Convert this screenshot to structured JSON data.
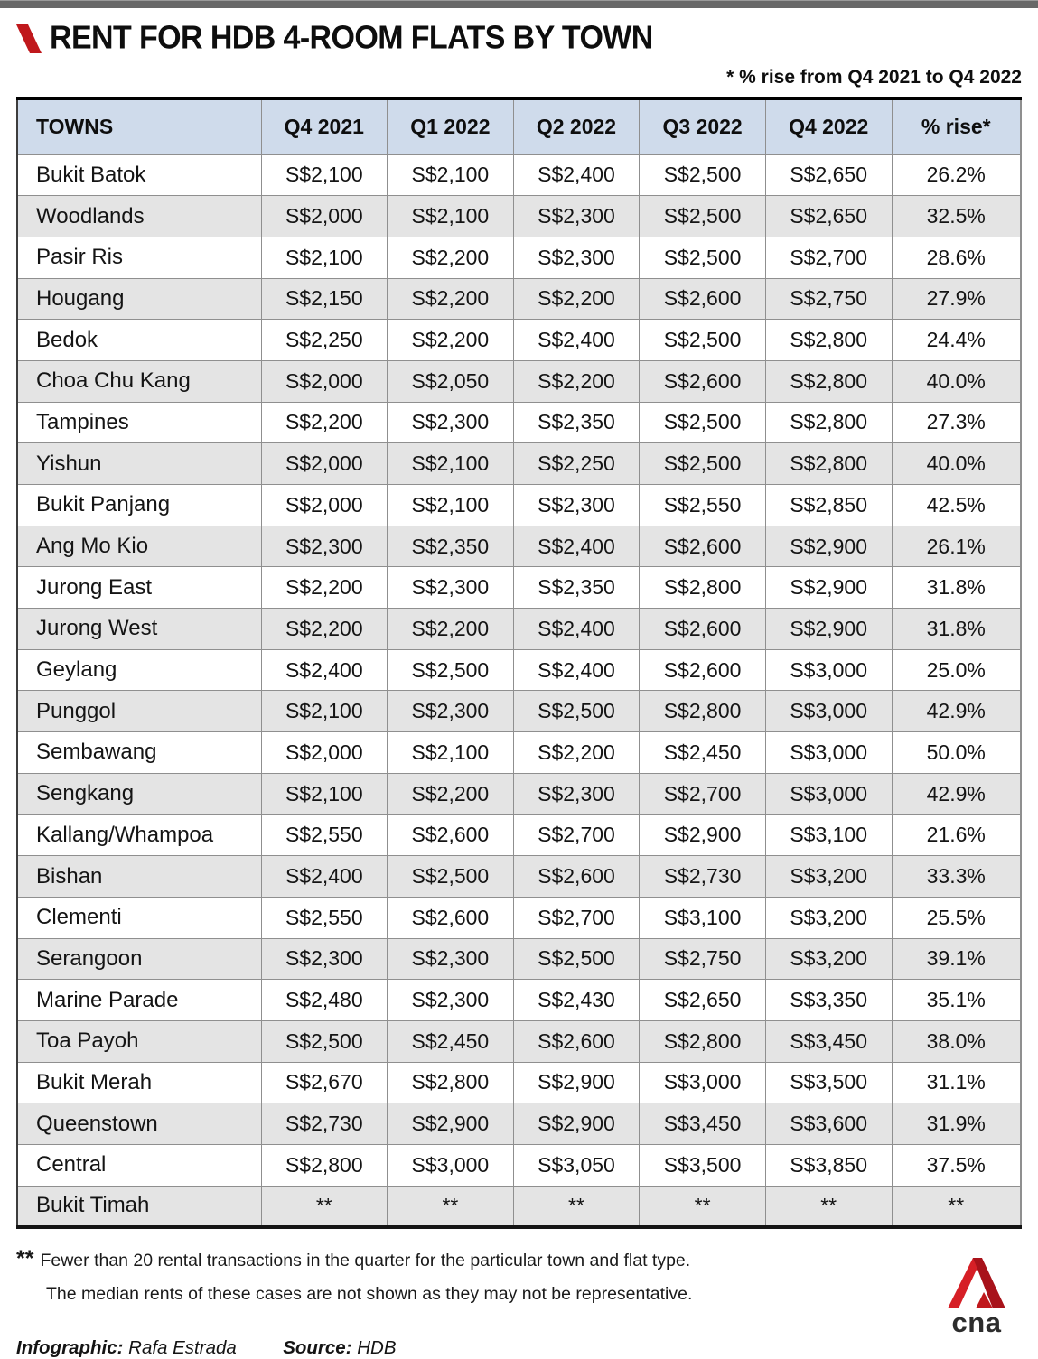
{
  "header": {
    "title": "RENT FOR HDB 4-ROOM FLATS BY TOWN",
    "subtitle": "* % rise from Q4 2021 to Q4 2022"
  },
  "chart_data": {
    "type": "table",
    "title": "RENT FOR HDB 4-ROOM FLATS BY TOWN",
    "note": "* % rise from Q4 2021 to Q4 2022",
    "columns": [
      "TOWNS",
      "Q4 2021",
      "Q1 2022",
      "Q2 2022",
      "Q3 2022",
      "Q4 2022",
      "% rise*"
    ],
    "rows": [
      {
        "town": "Bukit Batok",
        "values": [
          "S$2,100",
          "S$2,100",
          "S$2,400",
          "S$2,500",
          "S$2,650"
        ],
        "rise": "26.2%"
      },
      {
        "town": "Woodlands",
        "values": [
          "S$2,000",
          "S$2,100",
          "S$2,300",
          "S$2,500",
          "S$2,650"
        ],
        "rise": "32.5%"
      },
      {
        "town": "Pasir Ris",
        "values": [
          "S$2,100",
          "S$2,200",
          "S$2,300",
          "S$2,500",
          "S$2,700"
        ],
        "rise": "28.6%"
      },
      {
        "town": "Hougang",
        "values": [
          "S$2,150",
          "S$2,200",
          "S$2,200",
          "S$2,600",
          "S$2,750"
        ],
        "rise": "27.9%"
      },
      {
        "town": "Bedok",
        "values": [
          "S$2,250",
          "S$2,200",
          "S$2,400",
          "S$2,500",
          "S$2,800"
        ],
        "rise": "24.4%"
      },
      {
        "town": "Choa Chu Kang",
        "values": [
          "S$2,000",
          "S$2,050",
          "S$2,200",
          "S$2,600",
          "S$2,800"
        ],
        "rise": "40.0%"
      },
      {
        "town": "Tampines",
        "values": [
          "S$2,200",
          "S$2,300",
          "S$2,350",
          "S$2,500",
          "S$2,800"
        ],
        "rise": "27.3%"
      },
      {
        "town": "Yishun",
        "values": [
          "S$2,000",
          "S$2,100",
          "S$2,250",
          "S$2,500",
          "S$2,800"
        ],
        "rise": "40.0%"
      },
      {
        "town": "Bukit Panjang",
        "values": [
          "S$2,000",
          "S$2,100",
          "S$2,300",
          "S$2,550",
          "S$2,850"
        ],
        "rise": "42.5%"
      },
      {
        "town": "Ang Mo Kio",
        "values": [
          "S$2,300",
          "S$2,350",
          "S$2,400",
          "S$2,600",
          "S$2,900"
        ],
        "rise": "26.1%"
      },
      {
        "town": "Jurong East",
        "values": [
          "S$2,200",
          "S$2,300",
          "S$2,350",
          "S$2,800",
          "S$2,900"
        ],
        "rise": "31.8%"
      },
      {
        "town": "Jurong West",
        "values": [
          "S$2,200",
          "S$2,200",
          "S$2,400",
          "S$2,600",
          "S$2,900"
        ],
        "rise": "31.8%"
      },
      {
        "town": "Geylang",
        "values": [
          "S$2,400",
          "S$2,500",
          "S$2,400",
          "S$2,600",
          "S$3,000"
        ],
        "rise": "25.0%"
      },
      {
        "town": "Punggol",
        "values": [
          "S$2,100",
          "S$2,300",
          "S$2,500",
          "S$2,800",
          "S$3,000"
        ],
        "rise": "42.9%"
      },
      {
        "town": "Sembawang",
        "values": [
          "S$2,000",
          "S$2,100",
          "S$2,200",
          "S$2,450",
          "S$3,000"
        ],
        "rise": "50.0%"
      },
      {
        "town": "Sengkang",
        "values": [
          "S$2,100",
          "S$2,200",
          "S$2,300",
          "S$2,700",
          "S$3,000"
        ],
        "rise": "42.9%"
      },
      {
        "town": "Kallang/Whampoa",
        "values": [
          "S$2,550",
          "S$2,600",
          "S$2,700",
          "S$2,900",
          "S$3,100"
        ],
        "rise": "21.6%"
      },
      {
        "town": "Bishan",
        "values": [
          "S$2,400",
          "S$2,500",
          "S$2,600",
          "S$2,730",
          "S$3,200"
        ],
        "rise": "33.3%"
      },
      {
        "town": "Clementi",
        "values": [
          "S$2,550",
          "S$2,600",
          "S$2,700",
          "S$3,100",
          "S$3,200"
        ],
        "rise": "25.5%"
      },
      {
        "town": "Serangoon",
        "values": [
          "S$2,300",
          "S$2,300",
          "S$2,500",
          "S$2,750",
          "S$3,200"
        ],
        "rise": "39.1%"
      },
      {
        "town": "Marine Parade",
        "values": [
          "S$2,480",
          "S$2,300",
          "S$2,430",
          "S$2,650",
          "S$3,350"
        ],
        "rise": "35.1%"
      },
      {
        "town": "Toa Payoh",
        "values": [
          "S$2,500",
          "S$2,450",
          "S$2,600",
          "S$2,800",
          "S$3,450"
        ],
        "rise": "38.0%"
      },
      {
        "town": "Bukit Merah",
        "values": [
          "S$2,670",
          "S$2,800",
          "S$2,900",
          "S$3,000",
          "S$3,500"
        ],
        "rise": "31.1%"
      },
      {
        "town": "Queenstown",
        "values": [
          "S$2,730",
          "S$2,900",
          "S$2,900",
          "S$3,450",
          "S$3,600"
        ],
        "rise": "31.9%"
      },
      {
        "town": "Central",
        "values": [
          "S$2,800",
          "S$3,000",
          "S$3,050",
          "S$3,500",
          "S$3,850"
        ],
        "rise": "37.5%"
      },
      {
        "town": "Bukit Timah",
        "values": [
          "**",
          "**",
          "**",
          "**",
          "**"
        ],
        "rise": "**"
      }
    ]
  },
  "footnote": {
    "marker": "**",
    "line1": "Fewer than 20 rental transactions in the quarter for the particular town and flat type.",
    "line2": "The median rents of these cases are not shown as they may not be representative."
  },
  "credits": {
    "infographic_label": "Infographic:",
    "infographic_value": "Rafa Estrada",
    "source_label": "Source:",
    "source_value": "HDB"
  },
  "logo": {
    "text": "cna"
  },
  "colors": {
    "accent_red": "#c0181c",
    "header_bg": "#cfdbeb",
    "row_alt_bg": "#e4e4e4",
    "topbar": "#686868",
    "border": "#8f8f8f"
  }
}
